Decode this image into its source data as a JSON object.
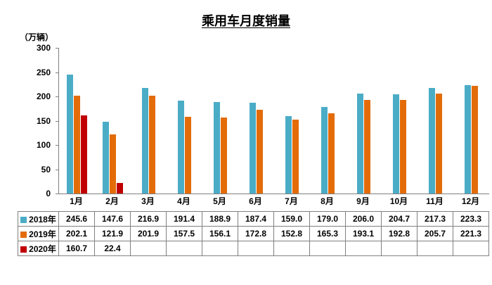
{
  "title": "乘用车月度销量",
  "unit_label": "（万辆）",
  "chart_data": {
    "type": "bar",
    "title": "乘用车月度销量",
    "ylabel": "（万辆）",
    "categories": [
      "1月",
      "2月",
      "3月",
      "4月",
      "5月",
      "6月",
      "7月",
      "8月",
      "9月",
      "10月",
      "11月",
      "12月"
    ],
    "series": [
      {
        "name": "2018年",
        "color": "#4BACC6",
        "values": [
          245.6,
          147.6,
          216.9,
          191.4,
          188.9,
          187.4,
          159.0,
          179.0,
          206.0,
          204.7,
          217.3,
          223.3
        ]
      },
      {
        "name": "2019年",
        "color": "#E36C09",
        "values": [
          202.1,
          121.9,
          201.9,
          157.5,
          156.1,
          172.8,
          152.8,
          165.3,
          193.1,
          192.8,
          205.7,
          221.3
        ]
      },
      {
        "name": "2020年",
        "color": "#C00000",
        "values": [
          160.7,
          22.4,
          null,
          null,
          null,
          null,
          null,
          null,
          null,
          null,
          null,
          null
        ]
      }
    ],
    "ylim": [
      0,
      300
    ],
    "yticks": [
      0,
      50,
      100,
      150,
      200,
      250,
      300
    ],
    "grid": false,
    "legend_position": "table-rows-left",
    "data_table_shown": true
  }
}
